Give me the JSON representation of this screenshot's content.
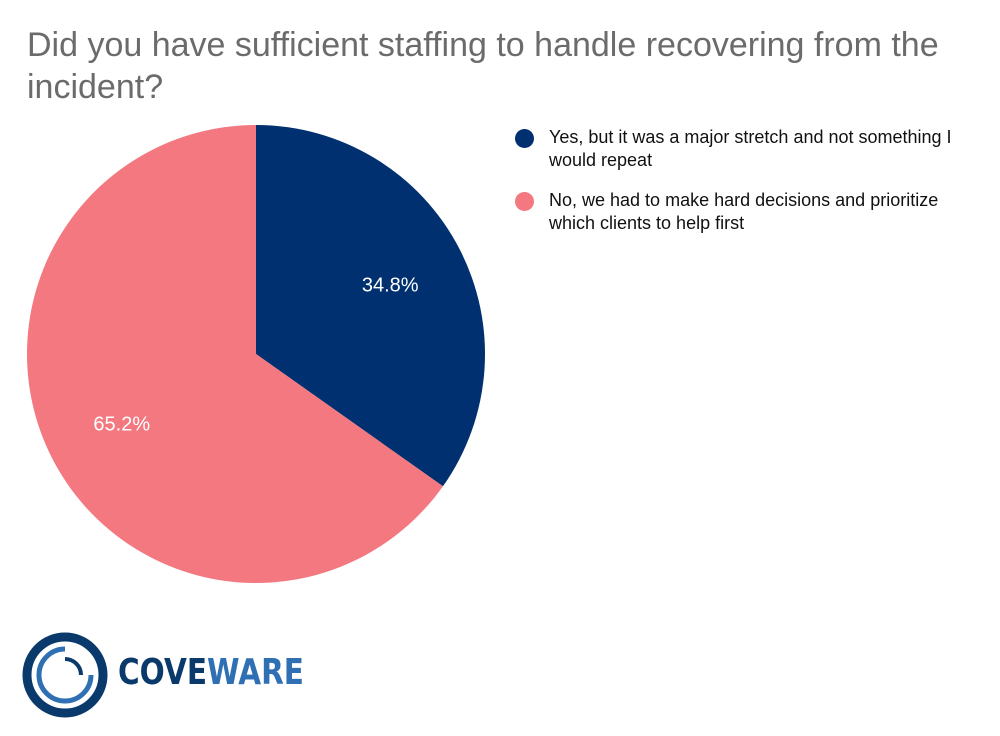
{
  "title": "Did you have sufficient staffing to handle recovering from the incident?",
  "chart_data": {
    "type": "pie",
    "title": "Did you have sufficient staffing to handle recovering from the incident?",
    "slices": [
      {
        "label": "Yes, but it was a major stretch and not something I would repeat",
        "value": 34.8,
        "display": "34.8%",
        "color": "#003070"
      },
      {
        "label": "No, we had to make hard decisions and prioritize which clients to help first",
        "value": 65.2,
        "display": "65.2%",
        "color": "#f47880"
      }
    ],
    "legend_position": "right",
    "data_label_color": "#ffffff"
  },
  "logo": {
    "part1": "COVE",
    "part2": "WARE",
    "colors": {
      "dark": "#0a3a6b",
      "light": "#2f6fb3"
    }
  }
}
